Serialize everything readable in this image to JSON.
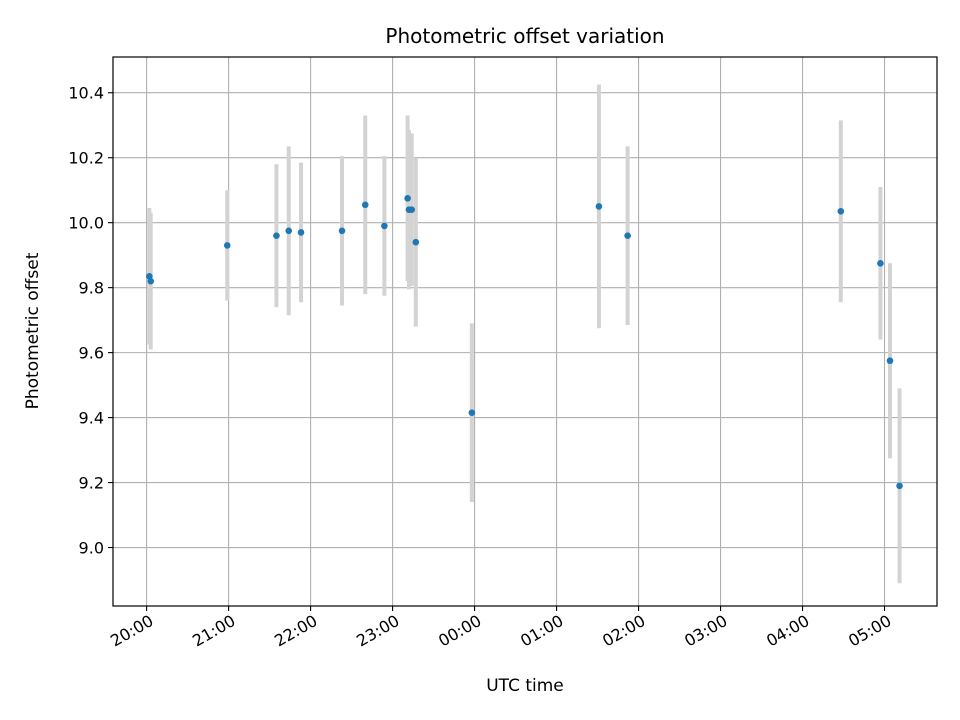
{
  "chart_data": {
    "type": "scatter",
    "title": "Photometric offset variation",
    "xlabel": "UTC time",
    "ylabel": "Photometric offset",
    "x_tick_labels": [
      "20:00",
      "21:00",
      "22:00",
      "23:00",
      "00:00",
      "01:00",
      "02:00",
      "03:00",
      "04:00",
      "05:00"
    ],
    "x_ticks_hours": [
      20,
      21,
      22,
      23,
      24,
      25,
      26,
      27,
      28,
      29
    ],
    "xlim_hours": [
      19.59,
      29.64
    ],
    "y_ticks": [
      9.0,
      9.2,
      9.4,
      9.6,
      9.8,
      10.0,
      10.2,
      10.4
    ],
    "ylim": [
      8.82,
      10.51
    ],
    "grid": true,
    "colors": {
      "point": "#1f77b4",
      "errorbar": "#d3d3d3",
      "grid": "#b0b0b0"
    },
    "points": [
      {
        "time": "20:02",
        "y": 9.835,
        "yerr": 0.21
      },
      {
        "time": "20:03",
        "y": 9.82,
        "yerr": 0.21
      },
      {
        "time": "20:59",
        "y": 9.93,
        "yerr": 0.17
      },
      {
        "time": "21:35",
        "y": 9.96,
        "yerr": 0.22
      },
      {
        "time": "21:44",
        "y": 9.975,
        "yerr": 0.26
      },
      {
        "time": "21:53",
        "y": 9.97,
        "yerr": 0.215
      },
      {
        "time": "22:23",
        "y": 9.975,
        "yerr": 0.23
      },
      {
        "time": "22:40",
        "y": 10.055,
        "yerr": 0.275
      },
      {
        "time": "22:54",
        "y": 9.99,
        "yerr": 0.215
      },
      {
        "time": "23:11",
        "y": 10.075,
        "yerr": 0.255
      },
      {
        "time": "23:12",
        "y": 10.04,
        "yerr": 0.245
      },
      {
        "time": "23:14",
        "y": 10.04,
        "yerr": 0.235
      },
      {
        "time": "23:17",
        "y": 9.94,
        "yerr": 0.26
      },
      {
        "time": "23:58",
        "y": 9.415,
        "yerr": 0.275
      },
      {
        "time": "01:31",
        "y": 10.05,
        "yerr": 0.375
      },
      {
        "time": "01:52",
        "y": 9.96,
        "yerr": 0.275
      },
      {
        "time": "04:28",
        "y": 10.035,
        "yerr": 0.28
      },
      {
        "time": "04:57",
        "y": 9.875,
        "yerr": 0.235
      },
      {
        "time": "05:04",
        "y": 9.575,
        "yerr": 0.3
      },
      {
        "time": "05:11",
        "y": 9.19,
        "yerr": 0.3
      }
    ]
  }
}
